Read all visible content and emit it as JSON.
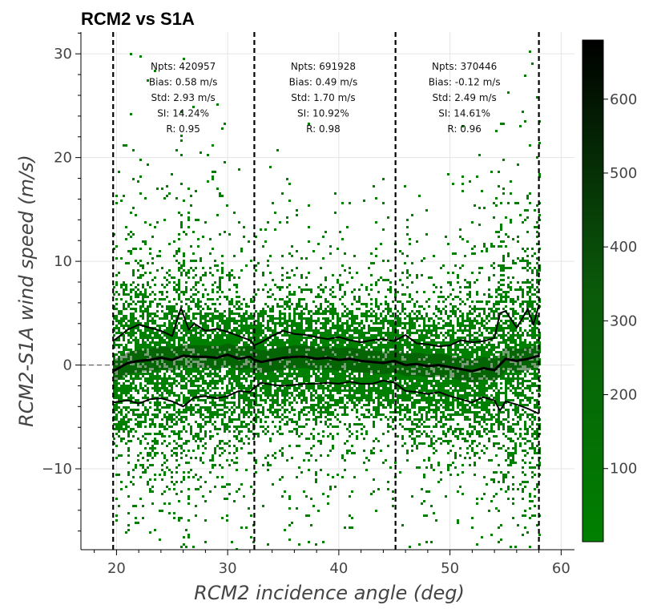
{
  "chart_data": {
    "type": "heatmap",
    "title": "RCM2 vs S1A",
    "xlabel": "RCM2 incidence angle (deg)",
    "ylabel": "RCM2-S1A wind speed (m/s)",
    "xlim": [
      16.8,
      61.2
    ],
    "ylim": [
      -17.8,
      32.1
    ],
    "x_ticks": [
      20,
      30,
      40,
      50,
      60
    ],
    "x_tick_labels": [
      "20",
      "30",
      "40",
      "50",
      "60"
    ],
    "y_ticks": [
      -10,
      0,
      10,
      20,
      30
    ],
    "y_tick_labels": [
      "−10",
      "0",
      "10",
      "20",
      "30"
    ],
    "grid": true,
    "zero_reference_line": true,
    "vertical_dashed_lines": [
      19.7,
      32.4,
      45.1,
      58.0
    ],
    "stats_panels": [
      {
        "x": 26.0,
        "lines": [
          "Npts: 420957",
          "Bias: 0.58 m/s",
          "Std: 2.93 m/s",
          "SI: 14.24%",
          "R: 0.95"
        ]
      },
      {
        "x": 38.6,
        "lines": [
          "Npts: 691928",
          "Bias: 0.49 m/s",
          "Std: 1.70 m/s",
          "SI: 10.92%",
          "R: 0.98"
        ]
      },
      {
        "x": 51.3,
        "lines": [
          "Npts: 370446",
          "Bias: -0.12 m/s",
          "Std: 2.49 m/s",
          "SI: 14.61%",
          "R: 0.96"
        ]
      }
    ],
    "series": [
      {
        "kind": "upper",
        "x": [
          19.7,
          21,
          22,
          23,
          24,
          25,
          25.8,
          26.5,
          27,
          28,
          29,
          30,
          31,
          32,
          32.4,
          33,
          34,
          35,
          36,
          37,
          38,
          39,
          40,
          41,
          42,
          43,
          44,
          45,
          46,
          47,
          48,
          49,
          50,
          51,
          52,
          53,
          54,
          54.5,
          55,
          56,
          57,
          57.5,
          58
        ],
        "values": [
          2.3,
          3.4,
          3.9,
          3.6,
          3.3,
          2.8,
          5.5,
          3.4,
          4.0,
          3.3,
          3.5,
          3.2,
          2.8,
          2.4,
          1.9,
          2.2,
          2.8,
          3.3,
          3.0,
          2.9,
          2.7,
          2.5,
          2.7,
          2.4,
          2.2,
          2.4,
          2.5,
          2.3,
          2.9,
          2.1,
          2.0,
          1.8,
          1.9,
          2.4,
          2.2,
          2.3,
          2.6,
          5.0,
          5.2,
          3.6,
          5.4,
          3.9,
          5.8
        ]
      },
      {
        "kind": "median",
        "x": [
          19.7,
          21,
          22,
          23,
          24,
          25,
          26,
          27,
          28,
          29,
          30,
          31,
          32,
          32.4,
          33,
          34,
          35,
          36,
          37,
          38,
          39,
          40,
          41,
          42,
          43,
          44,
          45,
          46,
          47,
          48,
          49,
          50,
          51,
          52,
          53,
          54,
          55,
          56,
          57,
          58
        ],
        "values": [
          -0.6,
          0.2,
          0.4,
          0.5,
          0.7,
          0.5,
          0.9,
          0.8,
          0.8,
          0.7,
          1.0,
          0.6,
          0.8,
          0.5,
          0.3,
          0.5,
          0.7,
          0.8,
          0.8,
          0.6,
          0.7,
          0.5,
          0.6,
          0.4,
          0.3,
          0.2,
          0.4,
          0.0,
          0.1,
          -0.1,
          0.0,
          -0.2,
          -0.4,
          -0.6,
          -0.3,
          -0.5,
          0.6,
          0.4,
          0.6,
          0.9
        ]
      },
      {
        "kind": "lower",
        "x": [
          19.7,
          21,
          22,
          23,
          24,
          25,
          26,
          27,
          28,
          29,
          30,
          31,
          32,
          32.4,
          33,
          34,
          35,
          36,
          37,
          38,
          39,
          40,
          41,
          42,
          43,
          44,
          45,
          46,
          47,
          48,
          49,
          50,
          51,
          52,
          53,
          54,
          54.5,
          55,
          56,
          57,
          58
        ],
        "values": [
          -3.6,
          -3.4,
          -3.7,
          -3.3,
          -3.2,
          -3.5,
          -4.0,
          -3.1,
          -3.0,
          -3.2,
          -3.0,
          -2.5,
          -2.6,
          -2.2,
          -1.7,
          -1.9,
          -2.0,
          -1.9,
          -1.8,
          -1.8,
          -1.7,
          -1.8,
          -1.6,
          -1.8,
          -1.8,
          -1.5,
          -1.7,
          -2.5,
          -2.6,
          -2.8,
          -2.6,
          -3.0,
          -3.3,
          -3.6,
          -3.1,
          -3.4,
          -4.4,
          -3.5,
          -3.8,
          -4.2,
          -4.7
        ]
      }
    ],
    "colorbar": {
      "range": [
        1,
        680
      ],
      "ticks": [
        100,
        200,
        300,
        400,
        500,
        600
      ],
      "tick_labels": [
        "100",
        "200",
        "300",
        "400",
        "500",
        "600"
      ],
      "color_low": "#008000",
      "color_high": "#000000"
    },
    "colors": {
      "scatter_green": "#008000",
      "line_color": "#000000",
      "grid_color": "#e5e5e5"
    }
  }
}
